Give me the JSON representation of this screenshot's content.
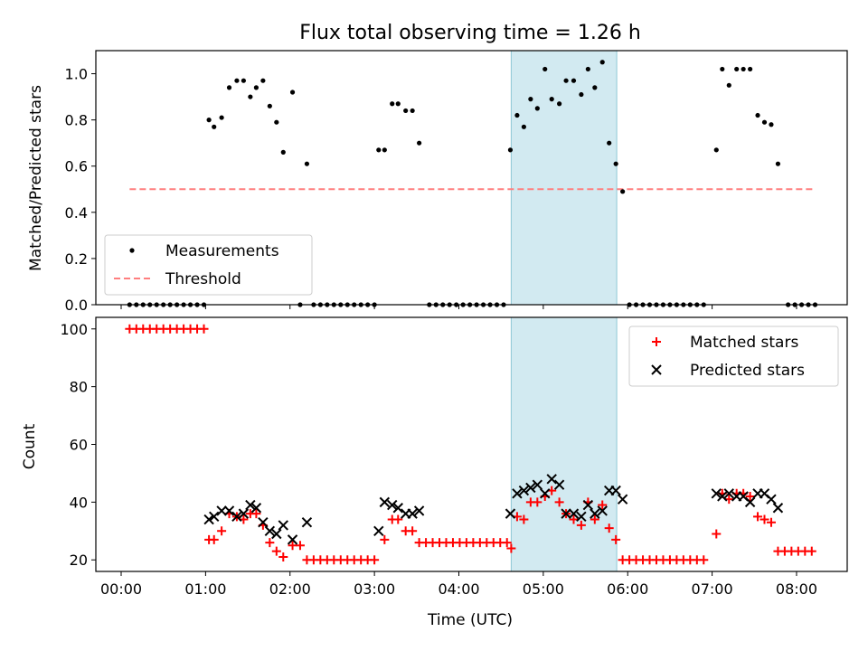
{
  "chart_data": [
    {
      "type": "scatter",
      "title": "Flux total observing time = 1.26 h",
      "xlabel": "",
      "ylabel": "Matched/Predicted stars",
      "xlim": [
        -0.3,
        8.6
      ],
      "ylim": [
        0,
        1.1
      ],
      "yticks": [
        "0.0",
        "0.2",
        "0.4",
        "0.6",
        "0.8",
        "1.0"
      ],
      "shaded_region": [
        4.62,
        5.87
      ],
      "legend": {
        "position": "lower-left",
        "entries": [
          "Measurements",
          "Threshold"
        ]
      },
      "threshold": {
        "name": "Threshold",
        "x": [
          0.1,
          8.2
        ],
        "y": 0.5
      },
      "series": [
        {
          "name": "Measurements",
          "points": [
            [
              0.1,
              0
            ],
            [
              0.18,
              0
            ],
            [
              0.26,
              0
            ],
            [
              0.34,
              0
            ],
            [
              0.42,
              0
            ],
            [
              0.5,
              0
            ],
            [
              0.58,
              0
            ],
            [
              0.66,
              0
            ],
            [
              0.74,
              0
            ],
            [
              0.82,
              0
            ],
            [
              0.9,
              0
            ],
            [
              0.98,
              0
            ],
            [
              1.04,
              0.8
            ],
            [
              1.1,
              0.77
            ],
            [
              1.19,
              0.81
            ],
            [
              1.28,
              0.94
            ],
            [
              1.37,
              0.97
            ],
            [
              1.45,
              0.97
            ],
            [
              1.53,
              0.9
            ],
            [
              1.6,
              0.94
            ],
            [
              1.68,
              0.97
            ],
            [
              1.76,
              0.86
            ],
            [
              1.84,
              0.79
            ],
            [
              1.92,
              0.66
            ],
            [
              2.03,
              0.92
            ],
            [
              2.2,
              0.61
            ],
            [
              2.12,
              0
            ],
            [
              2.28,
              0
            ],
            [
              2.36,
              0
            ],
            [
              2.44,
              0
            ],
            [
              2.52,
              0
            ],
            [
              2.6,
              0
            ],
            [
              2.68,
              0
            ],
            [
              2.76,
              0
            ],
            [
              2.84,
              0
            ],
            [
              2.92,
              0
            ],
            [
              3.0,
              0
            ],
            [
              3.05,
              0.67
            ],
            [
              3.12,
              0.67
            ],
            [
              3.21,
              0.87
            ],
            [
              3.28,
              0.87
            ],
            [
              3.37,
              0.84
            ],
            [
              3.45,
              0.84
            ],
            [
              3.53,
              0.7
            ],
            [
              3.65,
              0
            ],
            [
              3.73,
              0
            ],
            [
              3.81,
              0
            ],
            [
              3.89,
              0
            ],
            [
              3.97,
              0
            ],
            [
              4.05,
              0
            ],
            [
              4.13,
              0
            ],
            [
              4.21,
              0
            ],
            [
              4.29,
              0
            ],
            [
              4.37,
              0
            ],
            [
              4.45,
              0
            ],
            [
              4.53,
              0
            ],
            [
              4.61,
              0.67
            ],
            [
              4.69,
              0.82
            ],
            [
              4.77,
              0.77
            ],
            [
              4.85,
              0.89
            ],
            [
              4.93,
              0.85
            ],
            [
              5.02,
              1.02
            ],
            [
              5.1,
              0.89
            ],
            [
              5.19,
              0.87
            ],
            [
              5.27,
              0.97
            ],
            [
              5.36,
              0.97
            ],
            [
              5.45,
              0.91
            ],
            [
              5.53,
              1.02
            ],
            [
              5.61,
              0.94
            ],
            [
              5.7,
              1.05
            ],
            [
              5.78,
              0.7
            ],
            [
              5.86,
              0.61
            ],
            [
              5.94,
              0.49
            ],
            [
              6.02,
              0
            ],
            [
              6.1,
              0
            ],
            [
              6.18,
              0
            ],
            [
              6.26,
              0
            ],
            [
              6.34,
              0
            ],
            [
              6.42,
              0
            ],
            [
              6.5,
              0
            ],
            [
              6.58,
              0
            ],
            [
              6.66,
              0
            ],
            [
              6.74,
              0
            ],
            [
              6.82,
              0
            ],
            [
              6.9,
              0
            ],
            [
              7.05,
              0.67
            ],
            [
              7.12,
              1.02
            ],
            [
              7.2,
              0.95
            ],
            [
              7.29,
              1.02
            ],
            [
              7.37,
              1.02
            ],
            [
              7.45,
              1.02
            ],
            [
              7.54,
              0.82
            ],
            [
              7.62,
              0.79
            ],
            [
              7.7,
              0.78
            ],
            [
              7.78,
              0.61
            ],
            [
              7.9,
              0
            ],
            [
              7.98,
              0
            ],
            [
              8.06,
              0
            ],
            [
              8.14,
              0
            ],
            [
              8.22,
              0
            ]
          ]
        }
      ]
    },
    {
      "type": "scatter",
      "title": "",
      "xlabel": "Time (UTC)",
      "ylabel": "Count",
      "xlim": [
        -0.3,
        8.6
      ],
      "ylim": [
        16,
        104
      ],
      "yticks": [
        "20",
        "40",
        "60",
        "80",
        "100"
      ],
      "xticks": [
        "00:00",
        "01:00",
        "02:00",
        "03:00",
        "04:00",
        "05:00",
        "06:00",
        "07:00",
        "08:00"
      ],
      "shaded_region": [
        4.62,
        5.87
      ],
      "legend": {
        "position": "upper-right",
        "entries": [
          "Matched stars",
          "Predicted stars"
        ]
      },
      "series": [
        {
          "name": "Matched stars",
          "points": [
            [
              0.1,
              100
            ],
            [
              0.18,
              100
            ],
            [
              0.26,
              100
            ],
            [
              0.34,
              100
            ],
            [
              0.42,
              100
            ],
            [
              0.5,
              100
            ],
            [
              0.58,
              100
            ],
            [
              0.66,
              100
            ],
            [
              0.74,
              100
            ],
            [
              0.82,
              100
            ],
            [
              0.9,
              100
            ],
            [
              0.98,
              100
            ],
            [
              1.04,
              27
            ],
            [
              1.1,
              27
            ],
            [
              1.19,
              30
            ],
            [
              1.28,
              36
            ],
            [
              1.37,
              35
            ],
            [
              1.45,
              34
            ],
            [
              1.53,
              36
            ],
            [
              1.6,
              36
            ],
            [
              1.68,
              32
            ],
            [
              1.76,
              26
            ],
            [
              1.84,
              23
            ],
            [
              1.92,
              21
            ],
            [
              2.03,
              25
            ],
            [
              2.12,
              25
            ],
            [
              2.2,
              20
            ],
            [
              2.28,
              20
            ],
            [
              2.36,
              20
            ],
            [
              2.44,
              20
            ],
            [
              2.52,
              20
            ],
            [
              2.6,
              20
            ],
            [
              2.68,
              20
            ],
            [
              2.76,
              20
            ],
            [
              2.84,
              20
            ],
            [
              2.92,
              20
            ],
            [
              3.0,
              20
            ],
            [
              3.12,
              27
            ],
            [
              3.21,
              34
            ],
            [
              3.28,
              34
            ],
            [
              3.37,
              30
            ],
            [
              3.45,
              30
            ],
            [
              3.53,
              26
            ],
            [
              3.61,
              26
            ],
            [
              3.69,
              26
            ],
            [
              3.77,
              26
            ],
            [
              3.85,
              26
            ],
            [
              3.93,
              26
            ],
            [
              4.01,
              26
            ],
            [
              4.09,
              26
            ],
            [
              4.17,
              26
            ],
            [
              4.25,
              26
            ],
            [
              4.33,
              26
            ],
            [
              4.41,
              26
            ],
            [
              4.49,
              26
            ],
            [
              4.57,
              26
            ],
            [
              4.62,
              24
            ],
            [
              4.69,
              35
            ],
            [
              4.77,
              34
            ],
            [
              4.85,
              40
            ],
            [
              4.93,
              40
            ],
            [
              5.02,
              42
            ],
            [
              5.1,
              44
            ],
            [
              5.19,
              40
            ],
            [
              5.27,
              36
            ],
            [
              5.36,
              34
            ],
            [
              5.45,
              32
            ],
            [
              5.53,
              40
            ],
            [
              5.61,
              34
            ],
            [
              5.7,
              39
            ],
            [
              5.78,
              31
            ],
            [
              5.86,
              27
            ],
            [
              5.94,
              20
            ],
            [
              6.02,
              20
            ],
            [
              6.1,
              20
            ],
            [
              6.18,
              20
            ],
            [
              6.26,
              20
            ],
            [
              6.34,
              20
            ],
            [
              6.42,
              20
            ],
            [
              6.5,
              20
            ],
            [
              6.58,
              20
            ],
            [
              6.66,
              20
            ],
            [
              6.74,
              20
            ],
            [
              6.82,
              20
            ],
            [
              6.9,
              20
            ],
            [
              7.05,
              29
            ],
            [
              7.12,
              43
            ],
            [
              7.2,
              41
            ],
            [
              7.29,
              43
            ],
            [
              7.37,
              43
            ],
            [
              7.45,
              42
            ],
            [
              7.54,
              35
            ],
            [
              7.62,
              34
            ],
            [
              7.7,
              33
            ],
            [
              7.78,
              23
            ],
            [
              7.86,
              23
            ],
            [
              7.94,
              23
            ],
            [
              8.02,
              23
            ],
            [
              8.1,
              23
            ],
            [
              8.18,
              23
            ]
          ]
        },
        {
          "name": "Predicted stars",
          "points": [
            [
              1.04,
              34
            ],
            [
              1.1,
              35
            ],
            [
              1.19,
              37
            ],
            [
              1.28,
              37
            ],
            [
              1.37,
              35
            ],
            [
              1.45,
              36
            ],
            [
              1.53,
              39
            ],
            [
              1.6,
              38
            ],
            [
              1.68,
              33
            ],
            [
              1.76,
              30
            ],
            [
              1.84,
              29
            ],
            [
              1.92,
              32
            ],
            [
              2.03,
              27
            ],
            [
              2.2,
              33
            ],
            [
              3.05,
              30
            ],
            [
              3.12,
              40
            ],
            [
              3.21,
              39
            ],
            [
              3.28,
              38
            ],
            [
              3.37,
              36
            ],
            [
              3.45,
              36
            ],
            [
              3.53,
              37
            ],
            [
              4.61,
              36
            ],
            [
              4.69,
              43
            ],
            [
              4.77,
              44
            ],
            [
              4.85,
              45
            ],
            [
              4.93,
              46
            ],
            [
              5.02,
              43
            ],
            [
              5.1,
              48
            ],
            [
              5.19,
              46
            ],
            [
              5.27,
              36
            ],
            [
              5.36,
              36
            ],
            [
              5.45,
              35
            ],
            [
              5.53,
              39
            ],
            [
              5.61,
              36
            ],
            [
              5.7,
              37
            ],
            [
              5.78,
              44
            ],
            [
              5.86,
              44
            ],
            [
              5.94,
              41
            ],
            [
              7.05,
              43
            ],
            [
              7.12,
              42
            ],
            [
              7.2,
              43
            ],
            [
              7.29,
              42
            ],
            [
              7.37,
              42
            ],
            [
              7.45,
              40
            ],
            [
              7.54,
              43
            ],
            [
              7.62,
              43
            ],
            [
              7.7,
              41
            ],
            [
              7.78,
              38
            ]
          ]
        }
      ]
    }
  ]
}
